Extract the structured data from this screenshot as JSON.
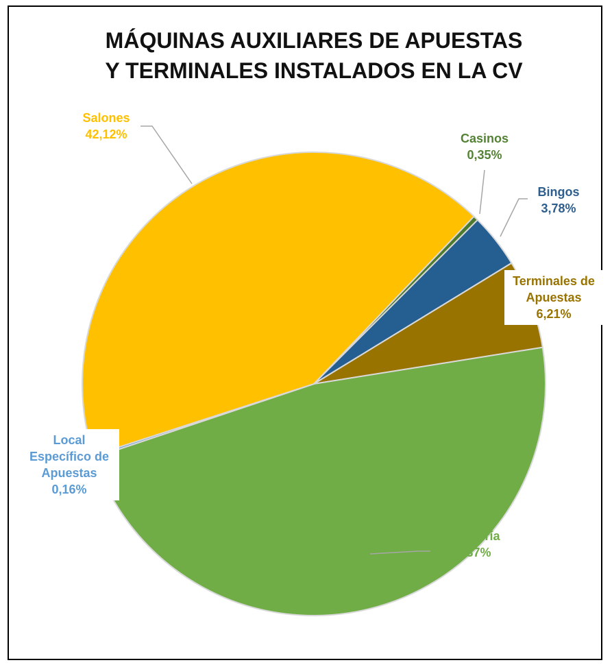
{
  "chart_data": {
    "type": "pie",
    "title": [
      "MÁQUINAS AUXILIARES DE APUESTAS",
      "Y TERMINALES INSTALADOS EN LA CV"
    ],
    "categories": [
      "Casinos",
      "Bingos",
      "Terminales de Apuestas",
      "Hostelería",
      "Local Específico de Apuestas",
      "Salones"
    ],
    "values": [
      0.35,
      3.78,
      6.21,
      47.37,
      0.16,
      42.12
    ],
    "value_labels": [
      "0,35%",
      "3,78%",
      "6,21%",
      "47,37%",
      "0,16%",
      "42,12%"
    ],
    "colors": [
      "#4e7a2e",
      "#255e91",
      "#997300",
      "#70ad47",
      "#5b9bd5",
      "#ffc000"
    ]
  }
}
